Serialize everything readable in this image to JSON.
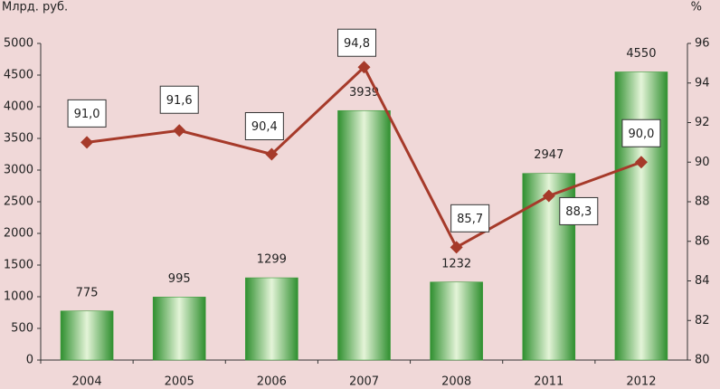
{
  "chart_data": {
    "type": "bar",
    "y_label": "Млрд. руб.",
    "y2_label": "%",
    "categories": [
      "2004",
      "2005",
      "2006",
      "2007",
      "2008",
      "2011",
      "2012"
    ],
    "series": [
      {
        "type": "bar",
        "color": "#3a9a3a",
        "values": [
          775,
          995,
          1299,
          3939,
          1232,
          2947,
          4550
        ]
      },
      {
        "type": "line",
        "axis": "y2",
        "color": "#a63a2a",
        "values": [
          91.0,
          91.6,
          90.4,
          94.8,
          85.7,
          88.3,
          90.0
        ],
        "value_labels": [
          "91,0",
          "91,6",
          "90,4",
          "94,8",
          "85,7",
          "88,3",
          "90,0"
        ]
      }
    ],
    "ylim": [
      0,
      5000
    ],
    "yticks": [
      0,
      500,
      1000,
      1500,
      2000,
      2500,
      3000,
      3500,
      4000,
      4500,
      5000
    ],
    "y2lim": [
      80,
      96
    ],
    "y2ticks": [
      80,
      82,
      84,
      86,
      88,
      90,
      92,
      94,
      96
    ],
    "grid": false
  }
}
